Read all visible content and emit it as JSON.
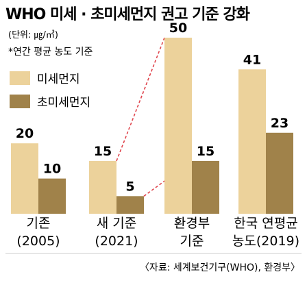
{
  "chart_data": {
    "type": "bar",
    "title": "WHO 미세 · 초미세먼지 권고 기준 강화",
    "unit": "(단위: ㎍/㎥)",
    "note": "*연간 평균 농도 기준",
    "categories": [
      [
        "기존",
        "(2005)"
      ],
      [
        "새 기준",
        "(2021)"
      ],
      [
        "환경부",
        "기준"
      ],
      [
        "한국 연평균",
        "농도(2019)"
      ]
    ],
    "series": [
      {
        "name": "미세먼지",
        "color": "#ecd29b",
        "values": [
          20,
          15,
          50,
          41
        ]
      },
      {
        "name": "초미세먼지",
        "color": "#a0824a",
        "values": [
          10,
          5,
          15,
          23
        ]
      }
    ],
    "ylim": [
      0,
      50
    ],
    "legend": "top-left",
    "source": "〈자료: 세계보건기구(WHO), 환경부〉"
  }
}
